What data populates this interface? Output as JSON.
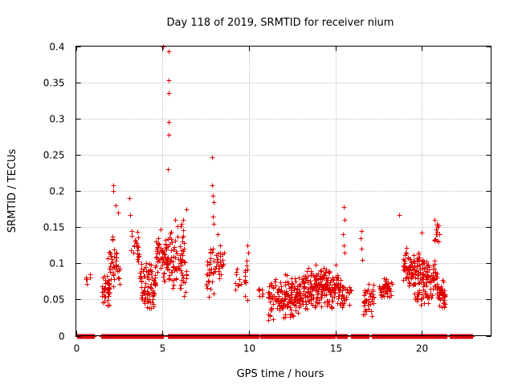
{
  "chart_data": {
    "type": "scatter",
    "title": "Day 118 of 2019, SRMTID for receiver nium",
    "xlabel": "GPS time / hours",
    "ylabel": "SRMTID / TECUs",
    "xlim": [
      0,
      24
    ],
    "ylim": [
      0,
      0.4
    ],
    "xticks": [
      0,
      5,
      10,
      15,
      20
    ],
    "yticks": [
      0,
      0.05,
      0.1,
      0.15,
      0.2,
      0.25,
      0.3,
      0.35,
      0.4
    ],
    "xtick_labels": [
      "0",
      "5",
      "10",
      "15",
      "20"
    ],
    "ytick_labels": [
      "0",
      "0.05",
      "0.1",
      "0.15",
      "0.2",
      "0.25",
      "0.3",
      "0.35",
      "0.4"
    ],
    "grid": true,
    "color": "#e00000",
    "marker": "plus",
    "zero_segments": [
      [
        0.05,
        1.05
      ],
      [
        1.45,
        5.05
      ],
      [
        5.3,
        10.55
      ],
      [
        10.65,
        15.0
      ],
      [
        15.05,
        15.7
      ],
      [
        15.9,
        16.9
      ],
      [
        17.1,
        21.45
      ],
      [
        21.6,
        22.95
      ]
    ],
    "clusters": [
      {
        "x_range": [
          0.55,
          0.85
        ],
        "y_range": [
          0.07,
          0.1
        ],
        "n": 6
      },
      {
        "x_range": [
          1.45,
          1.95
        ],
        "y_range": [
          0.035,
          0.09
        ],
        "n": 45
      },
      {
        "x_range": [
          1.85,
          2.55
        ],
        "y_range": [
          0.06,
          0.14
        ],
        "n": 40
      },
      {
        "x_range": [
          3.2,
          3.65
        ],
        "y_range": [
          0.085,
          0.15
        ],
        "n": 25
      },
      {
        "x_range": [
          3.7,
          4.6
        ],
        "y_range": [
          0.03,
          0.11
        ],
        "n": 90
      },
      {
        "x_range": [
          4.6,
          5.4
        ],
        "y_range": [
          0.06,
          0.155
        ],
        "n": 70
      },
      {
        "x_range": [
          5.4,
          6.4
        ],
        "y_range": [
          0.05,
          0.16
        ],
        "n": 80
      },
      {
        "x_range": [
          7.5,
          8.0
        ],
        "y_range": [
          0.045,
          0.14
        ],
        "n": 30
      },
      {
        "x_range": [
          8.0,
          8.6
        ],
        "y_range": [
          0.075,
          0.12
        ],
        "n": 25
      },
      {
        "x_range": [
          9.2,
          9.55
        ],
        "y_range": [
          0.055,
          0.1
        ],
        "n": 10
      },
      {
        "x_range": [
          9.7,
          9.95
        ],
        "y_range": [
          0.045,
          0.12
        ],
        "n": 12
      },
      {
        "x_range": [
          10.5,
          10.8
        ],
        "y_range": [
          0.045,
          0.07
        ],
        "n": 8
      },
      {
        "x_range": [
          11.1,
          12.1
        ],
        "y_range": [
          0.02,
          0.085
        ],
        "n": 80
      },
      {
        "x_range": [
          12.1,
          13.1
        ],
        "y_range": [
          0.02,
          0.09
        ],
        "n": 100
      },
      {
        "x_range": [
          13.1,
          14.2
        ],
        "y_range": [
          0.03,
          0.1
        ],
        "n": 120
      },
      {
        "x_range": [
          14.2,
          15.3
        ],
        "y_range": [
          0.035,
          0.1
        ],
        "n": 110
      },
      {
        "x_range": [
          15.3,
          15.9
        ],
        "y_range": [
          0.03,
          0.075
        ],
        "n": 30
      },
      {
        "x_range": [
          16.6,
          17.2
        ],
        "y_range": [
          0.02,
          0.08
        ],
        "n": 40
      },
      {
        "x_range": [
          17.5,
          18.3
        ],
        "y_range": [
          0.05,
          0.085
        ],
        "n": 45
      },
      {
        "x_range": [
          18.9,
          19.6
        ],
        "y_range": [
          0.055,
          0.125
        ],
        "n": 70
      },
      {
        "x_range": [
          19.6,
          20.4
        ],
        "y_range": [
          0.04,
          0.12
        ],
        "n": 90
      },
      {
        "x_range": [
          20.4,
          20.9
        ],
        "y_range": [
          0.05,
          0.11
        ],
        "n": 35
      },
      {
        "x_range": [
          20.7,
          21.0
        ],
        "y_range": [
          0.12,
          0.16
        ],
        "n": 12
      },
      {
        "x_range": [
          20.9,
          21.35
        ],
        "y_range": [
          0.03,
          0.08
        ],
        "n": 40
      }
    ],
    "points": [
      [
        5.05,
        0.4
      ],
      [
        5.35,
        0.393
      ],
      [
        5.35,
        0.353
      ],
      [
        5.38,
        0.335
      ],
      [
        5.35,
        0.295
      ],
      [
        5.38,
        0.278
      ],
      [
        5.33,
        0.23
      ],
      [
        7.85,
        0.246
      ],
      [
        7.85,
        0.208
      ],
      [
        7.9,
        0.193
      ],
      [
        7.95,
        0.185
      ],
      [
        7.9,
        0.165
      ],
      [
        7.95,
        0.155
      ],
      [
        2.15,
        0.208
      ],
      [
        2.15,
        0.2
      ],
      [
        2.3,
        0.18
      ],
      [
        2.45,
        0.17
      ],
      [
        3.1,
        0.19
      ],
      [
        3.15,
        0.167
      ],
      [
        3.4,
        0.13
      ],
      [
        6.4,
        0.175
      ],
      [
        6.2,
        0.16
      ],
      [
        6.1,
        0.155
      ],
      [
        5.75,
        0.16
      ],
      [
        8.2,
        0.14
      ],
      [
        8.35,
        0.125
      ],
      [
        9.9,
        0.125
      ],
      [
        9.95,
        0.115
      ],
      [
        15.5,
        0.178
      ],
      [
        15.55,
        0.16
      ],
      [
        15.45,
        0.14
      ],
      [
        15.5,
        0.125
      ],
      [
        15.55,
        0.115
      ],
      [
        16.5,
        0.145
      ],
      [
        16.45,
        0.135
      ],
      [
        16.5,
        0.12
      ],
      [
        16.55,
        0.105
      ],
      [
        18.7,
        0.167
      ],
      [
        20.0,
        0.142
      ],
      [
        20.75,
        0.16
      ],
      [
        20.85,
        0.155
      ],
      [
        20.9,
        0.15
      ],
      [
        20.8,
        0.14
      ],
      [
        20.95,
        0.13
      ]
    ]
  }
}
